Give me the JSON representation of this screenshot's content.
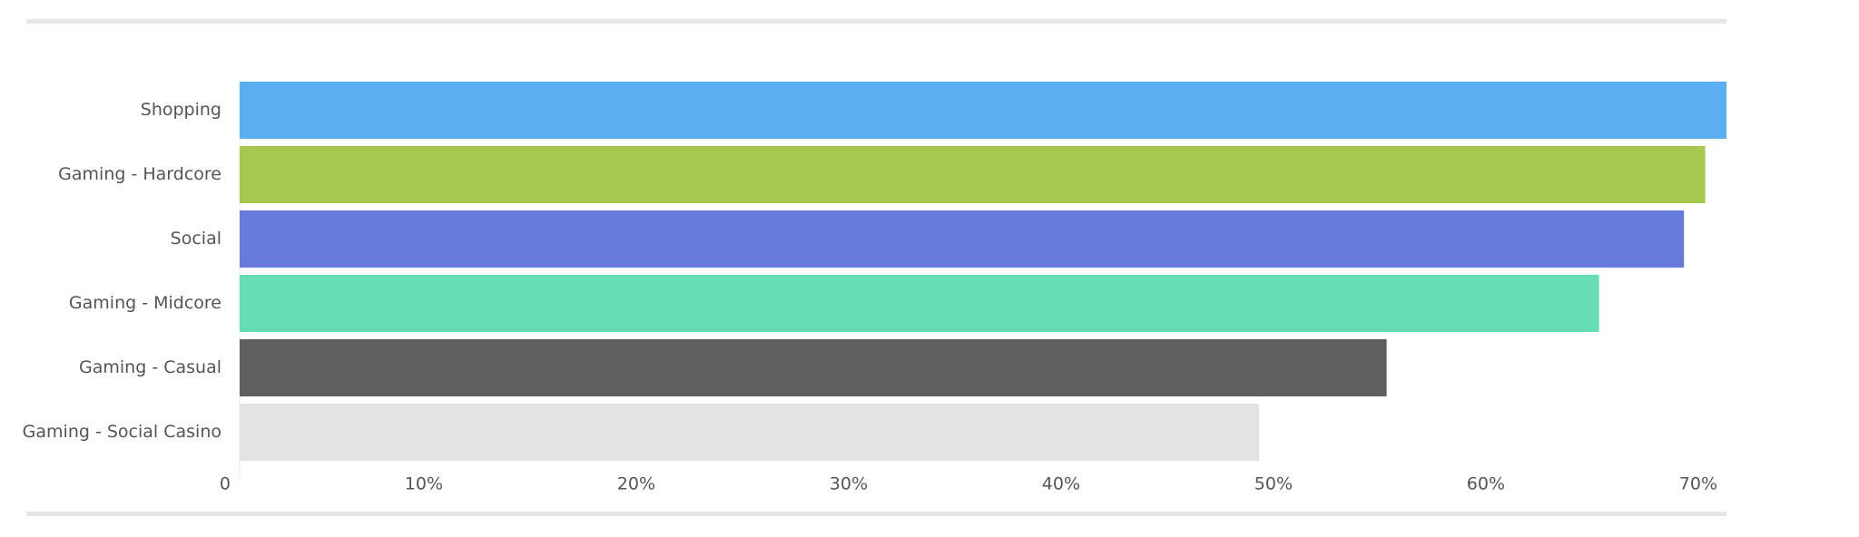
{
  "chart_data": {
    "type": "bar",
    "orientation": "horizontal",
    "categories": [
      "Shopping",
      "Gaming - Hardcore",
      "Social",
      "Gaming - Midcore",
      "Gaming - Casual",
      "Gaming - Social Casino"
    ],
    "values": [
      70,
      69,
      68,
      64,
      54,
      48
    ],
    "colors": [
      "#5aaff0",
      "#a5c94e",
      "#677bdb",
      "#66dcb4",
      "#5f5f5f",
      "#e3e3e3"
    ],
    "xlim": [
      0,
      70
    ],
    "xticks": [
      0,
      {
        "value": 10,
        "label": "10%"
      },
      {
        "value": 20,
        "label": "20%"
      },
      {
        "value": 30,
        "label": "30%"
      },
      {
        "value": 40,
        "label": "40%"
      },
      {
        "value": 50,
        "label": "50%"
      },
      {
        "value": 60,
        "label": "60%"
      },
      {
        "value": 70,
        "label": "70%"
      }
    ]
  }
}
